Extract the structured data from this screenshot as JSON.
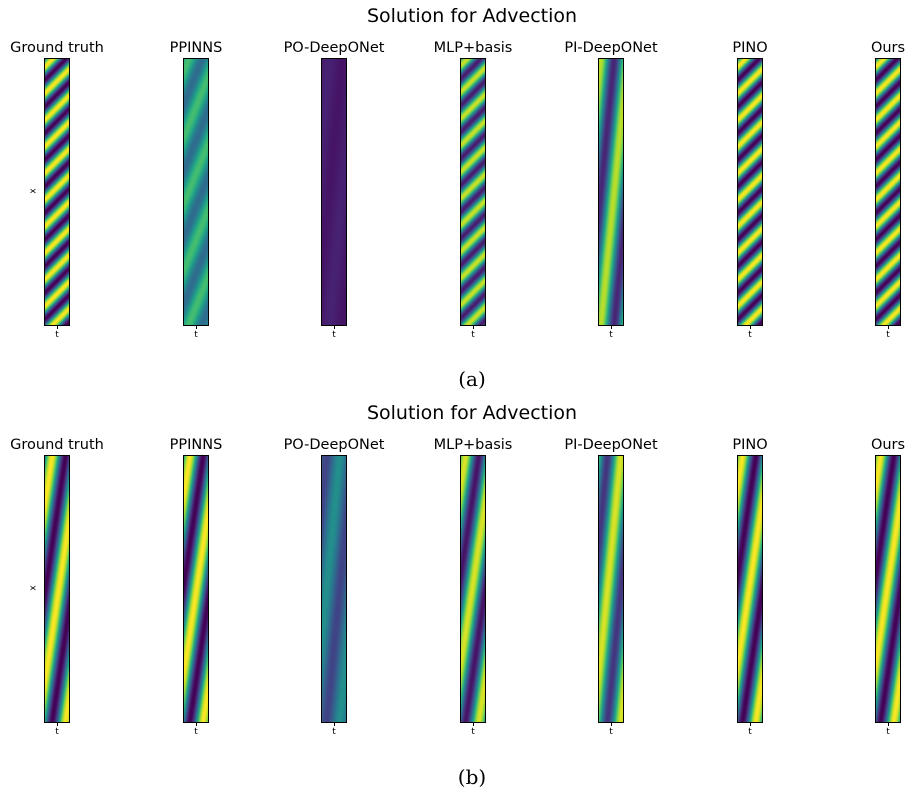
{
  "chart_data": [
    {
      "type": "heatmap",
      "title": "Solution for Advection",
      "caption": "(a)",
      "xlabel": "t",
      "ylabel": "x",
      "colormap": "viridis",
      "panels": [
        {
          "name": "Ground truth",
          "bands": 10,
          "contrast": 1.0,
          "offset": 0.0,
          "phase": 0.0
        },
        {
          "name": "PPINNS",
          "bands": 4,
          "contrast": 0.35,
          "offset": 0.05,
          "phase": 0.1
        },
        {
          "name": "PO-DeepONet",
          "bands": 1,
          "contrast": 0.04,
          "offset": -0.85,
          "phase": 0.0
        },
        {
          "name": "MLP+basis",
          "bands": 10,
          "contrast": 0.85,
          "offset": 0.0,
          "phase": 0.05
        },
        {
          "name": "PI-DeepONet",
          "bands": 1,
          "contrast": 0.8,
          "offset": 0.0,
          "phase": 0.2
        },
        {
          "name": "PINO",
          "bands": 10,
          "contrast": 1.0,
          "offset": 0.0,
          "phase": 0.0
        },
        {
          "name": "Ours",
          "bands": 10,
          "contrast": 1.0,
          "offset": 0.0,
          "phase": 0.0
        }
      ]
    },
    {
      "type": "heatmap",
      "title": "Solution for Advection",
      "caption": "(b)",
      "xlabel": "t",
      "ylabel": "x",
      "colormap": "viridis",
      "panels": [
        {
          "name": "Ground truth",
          "bands": 1.5,
          "contrast": 1.0,
          "offset": 0.0,
          "phase": 0.0
        },
        {
          "name": "PPINNS",
          "bands": 1.5,
          "contrast": 1.0,
          "offset": 0.0,
          "phase": 0.05
        },
        {
          "name": "PO-DeepONet",
          "bands": 1,
          "contrast": 0.3,
          "offset": -0.3,
          "phase": 0.6
        },
        {
          "name": "MLP+basis",
          "bands": 1.5,
          "contrast": 0.9,
          "offset": 0.0,
          "phase": 0.1
        },
        {
          "name": "PI-DeepONet",
          "bands": 1,
          "contrast": 0.8,
          "offset": 0.1,
          "phase": 0.45
        },
        {
          "name": "PINO",
          "bands": 1.5,
          "contrast": 1.0,
          "offset": 0.0,
          "phase": 0.1
        },
        {
          "name": "Ours",
          "bands": 1.5,
          "contrast": 1.0,
          "offset": 0.0,
          "phase": 0.1
        }
      ]
    }
  ]
}
